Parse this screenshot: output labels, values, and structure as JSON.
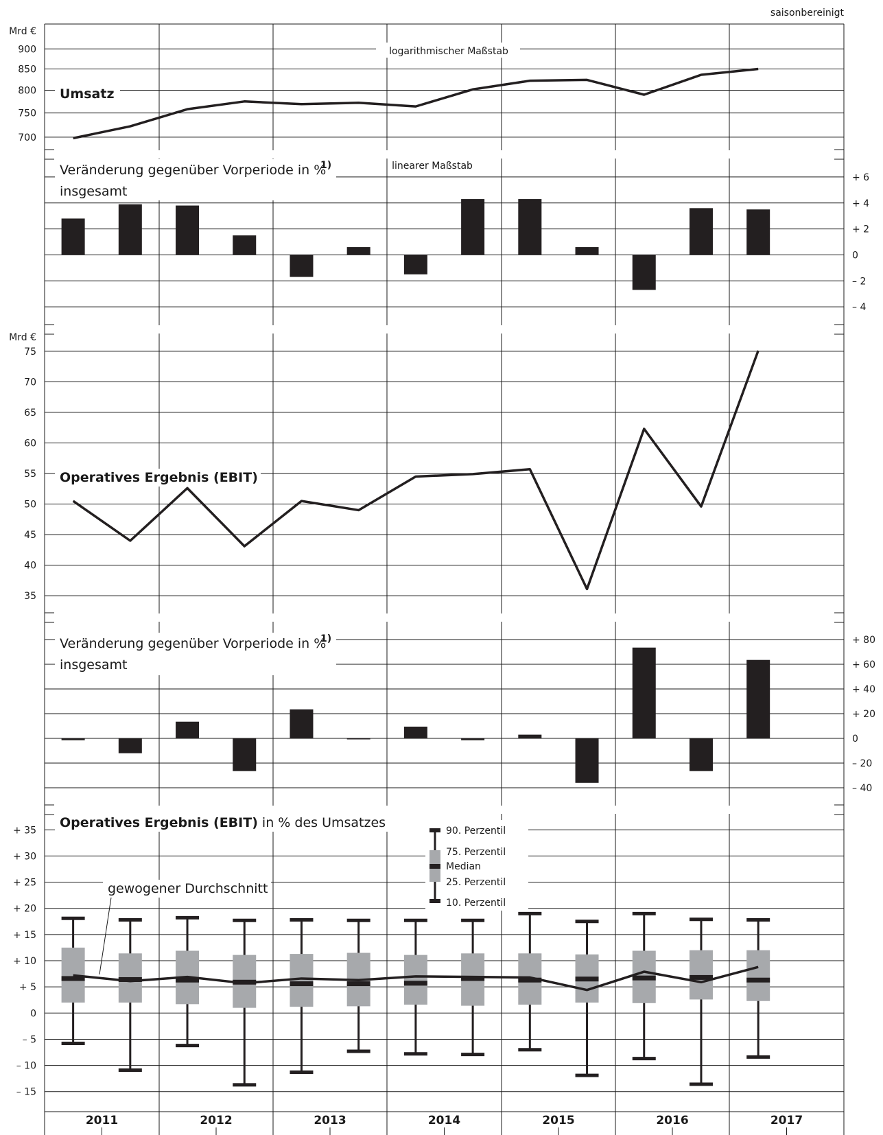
{
  "note": "saisonbereinigt",
  "years": [
    "2011",
    "2012",
    "2013",
    "2014",
    "2015",
    "2016",
    "2017"
  ],
  "chart_data": [
    {
      "type": "line",
      "title": "Umsatz",
      "ylabel": "Mrd €",
      "scale_label": "logarithmischer Maßstab",
      "yscale": "log",
      "ylim": [
        685,
        940
      ],
      "yticks": [
        700,
        750,
        800,
        850,
        900
      ],
      "x": [
        "2011 H1",
        "2011 H2",
        "2012 H1",
        "2012 H2",
        "2013 H1",
        "2013 H2",
        "2014 H1",
        "2014 H2",
        "2015 H1",
        "2015 H2",
        "2016 H1",
        "2016 H2",
        "2017 H1"
      ],
      "series": [
        {
          "values": [
            698,
            722,
            758,
            775,
            769,
            772,
            764,
            802,
            822,
            824,
            790,
            836,
            850
          ]
        }
      ]
    },
    {
      "type": "bar",
      "title": "Veränderung gegenüber Vorperiode in %",
      "footnote": "1)",
      "subtitle": "insgesamt",
      "scale_label": "linearer Maßstab",
      "ylim": [
        -5,
        7
      ],
      "yticks": [
        6,
        4,
        2,
        0,
        -2,
        -4
      ],
      "ytick_labels": [
        "+ 6",
        "+ 4",
        "+ 2",
        "0",
        "– 2",
        "– 4"
      ],
      "x": [
        "2011 H1",
        "2011 H2",
        "2012 H1",
        "2012 H2",
        "2013 H1",
        "2013 H2",
        "2014 H1",
        "2014 H2",
        "2015 H1",
        "2015 H2",
        "2016 H1",
        "2016 H2",
        "2017 H1"
      ],
      "values": [
        2.8,
        3.9,
        3.8,
        1.5,
        -1.7,
        0.6,
        -1.5,
        4.3,
        4.3,
        0.6,
        -2.7,
        3.6,
        3.5
      ]
    },
    {
      "type": "line",
      "title": "Operatives Ergebnis (EBIT)",
      "ylabel": "Mrd €",
      "ylim": [
        33,
        77
      ],
      "yticks": [
        35,
        40,
        45,
        50,
        55,
        60,
        65,
        70,
        75
      ],
      "x": [
        "2011 H1",
        "2011 H2",
        "2012 H1",
        "2012 H2",
        "2013 H1",
        "2013 H2",
        "2014 H1",
        "2014 H2",
        "2015 H1",
        "2015 H2",
        "2016 H1",
        "2016 H2",
        "2017 H1"
      ],
      "series": [
        {
          "values": [
            50.5,
            44.0,
            52.6,
            43.1,
            50.5,
            49.0,
            54.5,
            54.9,
            55.7,
            36.1,
            62.3,
            49.6,
            75.1
          ]
        }
      ]
    },
    {
      "type": "bar",
      "title": "Veränderung gegenüber Vorperiode in %",
      "footnote": "1)",
      "subtitle": "insgesamt",
      "ylim": [
        -50,
        90
      ],
      "yticks": [
        80,
        60,
        40,
        20,
        0,
        -20,
        -40
      ],
      "ytick_labels": [
        "+ 80",
        "+ 60",
        "+ 40",
        "+ 20",
        "0",
        "– 20",
        "– 40"
      ],
      "x": [
        "2011 H1",
        "2011 H2",
        "2012 H1",
        "2012 H2",
        "2013 H1",
        "2013 H2",
        "2014 H1",
        "2014 H2",
        "2015 H1",
        "2015 H2",
        "2016 H1",
        "2016 H2",
        "2017 H1"
      ],
      "values": [
        -1.5,
        -12,
        13.5,
        -26.5,
        23.5,
        -0.5,
        9.5,
        -1.5,
        3,
        -36,
        73.5,
        -26.5,
        63.5
      ]
    },
    {
      "type": "box",
      "title_bold": "Operatives Ergebnis (EBIT)",
      "title_rest": " in % des Umsatzes",
      "ylim": [
        -17,
        37
      ],
      "yticks": [
        35,
        30,
        25,
        20,
        15,
        10,
        5,
        0,
        -5,
        -10,
        -15
      ],
      "ytick_labels": [
        "+ 35",
        "+ 30",
        "+ 25",
        "+ 20",
        "+ 15",
        "+ 10",
        "+ 5",
        "0",
        "– 5",
        "– 10",
        "– 15"
      ],
      "legend": {
        "p90": "90. Perzentil",
        "p75": "75. Perzentil",
        "median": "Median",
        "p25": "25. Perzentil",
        "p10": "10. Perzentil"
      },
      "avg_label": "gewogener Durchschnitt",
      "x": [
        "2011 H1",
        "2011 H2",
        "2012 H1",
        "2012 H2",
        "2013 H1",
        "2013 H2",
        "2014 H1",
        "2014 H2",
        "2015 H1",
        "2015 H2",
        "2016 H1",
        "2016 H2",
        "2017 H1"
      ],
      "p90": [
        18.1,
        17.8,
        18.2,
        17.7,
        17.8,
        17.7,
        17.7,
        17.7,
        19.0,
        17.5,
        19.0,
        17.9,
        17.8
      ],
      "p75": [
        12.5,
        11.4,
        11.9,
        11.1,
        11.3,
        11.5,
        11.1,
        11.4,
        11.4,
        11.2,
        11.9,
        12.0,
        12.0
      ],
      "median": [
        6.6,
        6.4,
        6.3,
        5.9,
        5.6,
        5.6,
        5.7,
        6.6,
        6.3,
        6.5,
        6.7,
        6.8,
        6.3
      ],
      "p25": [
        2.0,
        2.0,
        1.7,
        1.0,
        1.2,
        1.3,
        1.6,
        1.4,
        1.6,
        2.0,
        1.9,
        2.6,
        2.3
      ],
      "p10": [
        -5.8,
        -10.9,
        -6.2,
        -13.7,
        -11.3,
        -7.3,
        -7.8,
        -7.9,
        -7.0,
        -11.9,
        -8.7,
        -13.6,
        -8.4
      ],
      "avg": [
        7.2,
        6.1,
        6.9,
        5.7,
        6.6,
        6.3,
        7.0,
        6.9,
        6.8,
        4.4,
        7.9,
        5.9,
        8.8
      ]
    }
  ]
}
